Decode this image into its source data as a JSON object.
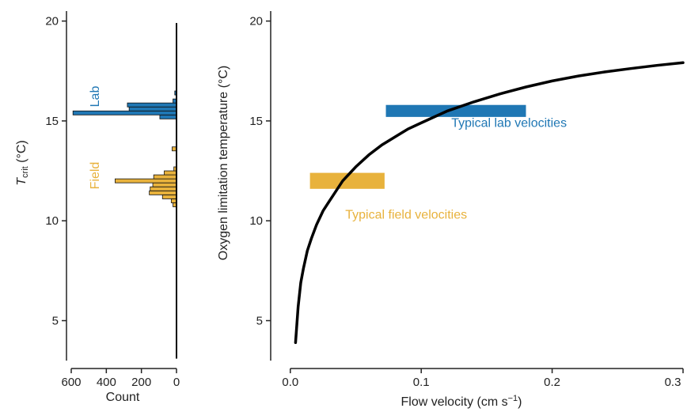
{
  "colors": {
    "lab": "#1f77b4",
    "field": "#e8b23c",
    "curve": "#000000",
    "axis": "#222222"
  },
  "chart_data": [
    {
      "type": "histogram",
      "orientation": "horizontal",
      "xlabel": "Count",
      "ylabel_main": "T",
      "ylabel_sub": "crit",
      "ylabel_unit": " (°C)",
      "xlim": [
        600,
        0
      ],
      "ylim": [
        3,
        20.5
      ],
      "xticks": [
        600,
        400,
        200,
        0
      ],
      "xtick_labels": [
        "600",
        "400",
        "200",
        "0"
      ],
      "yticks": [
        5,
        10,
        15,
        20
      ],
      "ytick_labels": [
        "5",
        "10",
        "15",
        "20"
      ],
      "bin_width": 0.2,
      "series": [
        {
          "name": "Lab",
          "color": "#1f77b4",
          "bins": [
            {
              "y": 15.2,
              "count": 95
            },
            {
              "y": 15.4,
              "count": 590
            },
            {
              "y": 15.6,
              "count": 270
            },
            {
              "y": 15.8,
              "count": 280
            },
            {
              "y": 16.0,
              "count": 20
            },
            {
              "y": 16.4,
              "count": 10
            }
          ]
        },
        {
          "name": "Field",
          "color": "#e8b23c",
          "bins": [
            {
              "y": 10.8,
              "count": 20
            },
            {
              "y": 11.0,
              "count": 30
            },
            {
              "y": 11.2,
              "count": 80
            },
            {
              "y": 11.4,
              "count": 155
            },
            {
              "y": 11.6,
              "count": 150
            },
            {
              "y": 11.8,
              "count": 135
            },
            {
              "y": 12.0,
              "count": 350
            },
            {
              "y": 12.2,
              "count": 130
            },
            {
              "y": 12.4,
              "count": 70
            },
            {
              "y": 12.6,
              "count": 15
            },
            {
              "y": 13.6,
              "count": 25
            }
          ]
        }
      ],
      "background_line": {
        "y_from": 3.1,
        "y_to": 19.9,
        "count": 0
      }
    },
    {
      "type": "line",
      "xlabel": "Flow velocity (cm s",
      "xlabel_sup": "−1",
      "xlabel_end": ")",
      "ylabel": "Oxygen limitation temperature (°C)",
      "xlim": [
        -0.015,
        0.3
      ],
      "ylim": [
        3,
        20.5
      ],
      "xticks": [
        0.0,
        0.1,
        0.2,
        0.3
      ],
      "xtick_labels": [
        "0.0",
        "0.1",
        "0.2",
        "0.3"
      ],
      "yticks": [
        5,
        10,
        15,
        20
      ],
      "ytick_labels": [
        "5",
        "10",
        "15",
        "20"
      ],
      "curve": {
        "x": [
          0.004,
          0.006,
          0.008,
          0.01,
          0.013,
          0.016,
          0.02,
          0.025,
          0.03,
          0.035,
          0.04,
          0.05,
          0.06,
          0.07,
          0.08,
          0.09,
          0.1,
          0.12,
          0.14,
          0.16,
          0.18,
          0.2,
          0.22,
          0.24,
          0.26,
          0.28,
          0.3
        ],
        "y": [
          3.9,
          5.7,
          6.9,
          7.6,
          8.5,
          9.1,
          9.8,
          10.5,
          11.0,
          11.5,
          12.0,
          12.7,
          13.3,
          13.8,
          14.2,
          14.6,
          14.9,
          15.5,
          15.95,
          16.35,
          16.7,
          17.0,
          17.25,
          17.45,
          17.62,
          17.78,
          17.92
        ]
      },
      "bands": [
        {
          "label": "Typical lab velocities",
          "x": [
            0.073,
            0.18
          ],
          "y": [
            15.2,
            15.8
          ],
          "color": "#1f77b4",
          "label_x": 0.123,
          "label_y": 14.9
        },
        {
          "label": "Typical field velocities",
          "x": [
            0.015,
            0.072
          ],
          "y": [
            11.6,
            12.4
          ],
          "color": "#e8b23c",
          "label_x": 0.042,
          "label_y": 10.3
        }
      ]
    }
  ],
  "labels": {
    "lab": "Lab",
    "field": "Field"
  }
}
